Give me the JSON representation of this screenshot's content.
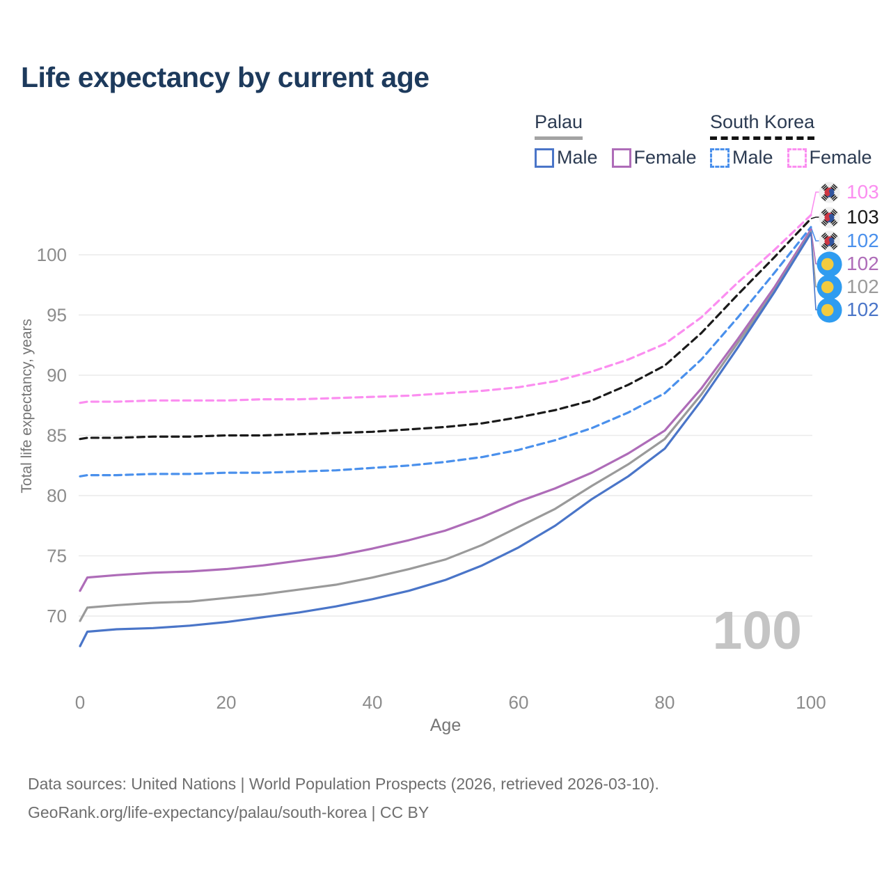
{
  "title": "Life expectancy by current age",
  "watermark": "100",
  "legend": {
    "groups": [
      {
        "label": "Palau",
        "line_style": "solid",
        "underline_color": "#a3a3a3",
        "items": [
          {
            "label": "Male",
            "color": "#4a75c8"
          },
          {
            "label": "Female",
            "color": "#ae6cb8"
          }
        ]
      },
      {
        "label": "South Korea",
        "line_style": "dashed",
        "underline_color": "#141414",
        "items": [
          {
            "label": "Male",
            "color": "#4a90ec"
          },
          {
            "label": "Female",
            "color": "#fb8ef0"
          }
        ]
      }
    ]
  },
  "footer": {
    "line1": "Data sources: United Nations | World Population Prospects (2026, retrieved 2026-03-10).",
    "line2": "GeoRank.org/life-expectancy/palau/south-korea | CC BY"
  },
  "colors": {
    "background": "#ffffff",
    "grid": "#eaeaea",
    "tick_text": "#8c8c8c",
    "axis_title_text": "#757575",
    "title_text": "#1d3a5c",
    "legend_text": "#2c3b52",
    "footer_text": "#6e6e6e",
    "watermark_text": "#c4c4c4"
  },
  "chart_data": {
    "type": "line",
    "title": "Life expectancy by current age",
    "xlabel": "Age",
    "ylabel": "Total life expectancy, years",
    "xlim": [
      0,
      100
    ],
    "ylim": [
      66,
      105
    ],
    "xticks": [
      0,
      20,
      40,
      60,
      80,
      100
    ],
    "yticks": [
      70,
      75,
      80,
      85,
      90,
      95,
      100
    ],
    "grid": "horizontal",
    "legend_position": "top-right",
    "x": [
      0,
      1,
      5,
      10,
      15,
      20,
      25,
      30,
      35,
      40,
      45,
      50,
      55,
      60,
      65,
      70,
      75,
      80,
      85,
      90,
      95,
      100
    ],
    "series": [
      {
        "name": "South Korea Female",
        "country": "south-korea",
        "dashed": true,
        "color": "#fb8ef0",
        "end_label": "103",
        "values": [
          87.7,
          87.8,
          87.8,
          87.9,
          87.9,
          87.9,
          88.0,
          88.0,
          88.1,
          88.2,
          88.3,
          88.5,
          88.7,
          89.0,
          89.5,
          90.3,
          91.3,
          92.6,
          94.8,
          97.7,
          100.4,
          103.3
        ]
      },
      {
        "name": "South Korea Both sexes",
        "country": "south-korea",
        "dashed": true,
        "color": "#1a1a1a",
        "end_label": "103",
        "values": [
          84.7,
          84.8,
          84.8,
          84.9,
          84.9,
          85.0,
          85.0,
          85.1,
          85.2,
          85.3,
          85.5,
          85.7,
          86.0,
          86.5,
          87.1,
          87.9,
          89.2,
          90.8,
          93.5,
          96.7,
          99.8,
          103.0
        ]
      },
      {
        "name": "South Korea Male",
        "country": "south-korea",
        "dashed": true,
        "color": "#4a90ec",
        "end_label": "102",
        "values": [
          81.6,
          81.7,
          81.7,
          81.8,
          81.8,
          81.9,
          81.9,
          82.0,
          82.1,
          82.3,
          82.5,
          82.8,
          83.2,
          83.8,
          84.6,
          85.6,
          86.9,
          88.5,
          91.3,
          94.8,
          98.5,
          102.3
        ]
      },
      {
        "name": "Palau Female",
        "country": "palau",
        "dashed": false,
        "color": "#ae6cb8",
        "end_label": "102",
        "values": [
          72.1,
          73.2,
          73.4,
          73.6,
          73.7,
          73.9,
          74.2,
          74.6,
          75.0,
          75.6,
          76.3,
          77.1,
          78.2,
          79.5,
          80.6,
          81.9,
          83.5,
          85.4,
          88.9,
          93.0,
          97.3,
          102.1
        ]
      },
      {
        "name": "Palau Both sexes",
        "country": "palau",
        "dashed": false,
        "color": "#9a9a9a",
        "end_label": "102",
        "values": [
          69.6,
          70.7,
          70.9,
          71.1,
          71.2,
          71.5,
          71.8,
          72.2,
          72.6,
          73.2,
          73.9,
          74.7,
          75.9,
          77.4,
          78.9,
          80.8,
          82.6,
          84.7,
          88.4,
          92.7,
          97.0,
          101.9
        ]
      },
      {
        "name": "Palau Male",
        "country": "palau",
        "dashed": false,
        "color": "#4a75c8",
        "end_label": "102",
        "values": [
          67.5,
          68.7,
          68.9,
          69.0,
          69.2,
          69.5,
          69.9,
          70.3,
          70.8,
          71.4,
          72.1,
          73.0,
          74.2,
          75.7,
          77.5,
          79.7,
          81.6,
          83.9,
          87.9,
          92.3,
          96.9,
          101.8
        ]
      }
    ]
  }
}
